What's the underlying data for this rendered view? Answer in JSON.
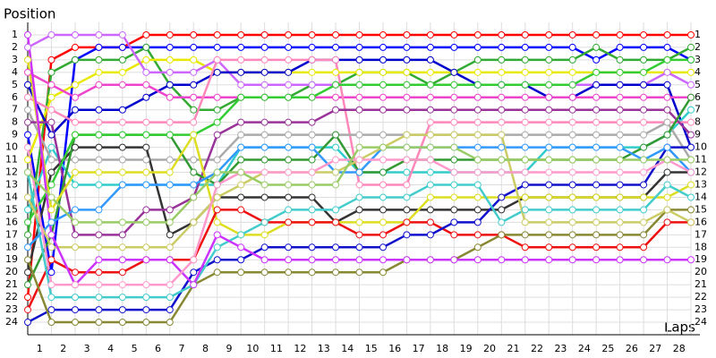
{
  "chart_data": {
    "type": "line",
    "ylabel": "Position",
    "xlabel": "Laps",
    "x": [
      0,
      1,
      2,
      3,
      4,
      5,
      6,
      7,
      8,
      9,
      10,
      11,
      12,
      13,
      14,
      15,
      16,
      17,
      18,
      19,
      20,
      21,
      22,
      23,
      24,
      25,
      26,
      27,
      28
    ],
    "xlim": [
      0,
      28
    ],
    "xticks": [
      1,
      2,
      3,
      4,
      5,
      6,
      7,
      8,
      9,
      10,
      11,
      12,
      13,
      14,
      15,
      16,
      17,
      18,
      19,
      20,
      21,
      22,
      23,
      24,
      25,
      26,
      27,
      28
    ],
    "ylim": [
      25,
      0
    ],
    "yticks": [
      1,
      2,
      3,
      4,
      5,
      6,
      7,
      8,
      9,
      10,
      11,
      12,
      13,
      14,
      15,
      16,
      17,
      18,
      19,
      20,
      21,
      22,
      23,
      24
    ],
    "grid": true,
    "series": [
      {
        "color": "#ff0000",
        "values": [
          22,
          3,
          2,
          2,
          2,
          1,
          1,
          1,
          1,
          1,
          1,
          1,
          1,
          1,
          1,
          1,
          1,
          1,
          1,
          1,
          1,
          1,
          1,
          1,
          1,
          1,
          1,
          1,
          1
        ]
      },
      {
        "color": "#0000ff",
        "values": [
          9,
          20,
          3,
          2,
          2,
          2,
          2,
          2,
          2,
          2,
          2,
          2,
          2,
          2,
          2,
          2,
          2,
          2,
          2,
          2,
          2,
          2,
          2,
          2,
          3,
          2,
          2,
          2,
          3
        ]
      },
      {
        "color": "#33aa33",
        "values": [
          17,
          4,
          3,
          3,
          3,
          2,
          5,
          7,
          7,
          6,
          6,
          6,
          5,
          5,
          4,
          4,
          4,
          5,
          4,
          3,
          3,
          3,
          3,
          3,
          2,
          3,
          3,
          3,
          2
        ]
      },
      {
        "color": "#e8e800",
        "values": [
          11,
          6,
          5,
          4,
          4,
          3,
          3,
          3,
          4,
          4,
          4,
          4,
          4,
          4,
          4,
          4,
          4,
          4,
          4,
          4,
          4,
          4,
          4,
          4,
          4,
          4,
          4,
          4,
          4
        ]
      },
      {
        "color": "#cc66ff",
        "values": [
          2,
          1,
          1,
          1,
          1,
          4,
          4,
          4,
          3,
          5,
          5,
          5,
          5,
          5,
          5,
          5,
          5,
          5,
          5,
          5,
          5,
          5,
          5,
          5,
          5,
          5,
          5,
          4,
          5
        ]
      },
      {
        "color": "#0000cc",
        "values": [
          5,
          9,
          7,
          7,
          7,
          6,
          5,
          5,
          4,
          4,
          4,
          4,
          3,
          3,
          3,
          3,
          3,
          3,
          4,
          5,
          5,
          5,
          6,
          6,
          5,
          5,
          5,
          5,
          10
        ]
      },
      {
        "color": "#ee44cc",
        "values": [
          4,
          5,
          6,
          5,
          5,
          5,
          6,
          6,
          6,
          6,
          6,
          6,
          6,
          6,
          6,
          6,
          6,
          6,
          6,
          6,
          6,
          6,
          6,
          6,
          6,
          6,
          6,
          6,
          6
        ]
      },
      {
        "color": "#33cccc",
        "values": [
          15,
          10,
          13,
          13,
          13,
          13,
          13,
          13,
          13,
          10,
          10,
          10,
          10,
          10,
          12,
          12,
          12,
          12,
          12,
          12,
          12,
          12,
          10,
          10,
          10,
          10,
          10,
          9,
          7
        ]
      },
      {
        "color": "#ff88bb",
        "values": [
          6,
          7,
          8,
          8,
          8,
          8,
          8,
          8,
          3,
          3,
          3,
          3,
          3,
          3,
          13,
          13,
          13,
          8,
          8,
          8,
          8,
          8,
          8,
          8,
          8,
          8,
          8,
          8,
          8
        ]
      },
      {
        "color": "#aaaaaa",
        "values": [
          7,
          11,
          11,
          11,
          11,
          11,
          11,
          11,
          11,
          9,
          9,
          9,
          9,
          9,
          9,
          9,
          9,
          9,
          9,
          9,
          9,
          9,
          9,
          9,
          9,
          9,
          9,
          8,
          11
        ]
      },
      {
        "color": "#333333",
        "values": [
          20,
          12,
          10,
          10,
          10,
          10,
          17,
          16,
          14,
          14,
          14,
          14,
          14,
          16,
          15,
          15,
          15,
          15,
          15,
          15,
          15,
          14,
          14,
          14,
          14,
          14,
          14,
          12,
          12
        ]
      },
      {
        "color": "#993399",
        "values": [
          8,
          8,
          17,
          17,
          17,
          15,
          15,
          14,
          9,
          8,
          8,
          8,
          8,
          7,
          7,
          7,
          7,
          7,
          7,
          7,
          7,
          7,
          7,
          7,
          7,
          7,
          7,
          7,
          9
        ]
      },
      {
        "color": "#339933",
        "values": [
          21,
          17,
          9,
          9,
          9,
          9,
          9,
          12,
          13,
          11,
          11,
          11,
          11,
          9,
          12,
          12,
          11,
          11,
          11,
          11,
          11,
          11,
          11,
          11,
          11,
          11,
          10,
          9,
          6
        ]
      },
      {
        "color": "#33cc33",
        "values": [
          16,
          13,
          9,
          9,
          9,
          9,
          9,
          9,
          8,
          6,
          6,
          6,
          6,
          5,
          5,
          5,
          5,
          5,
          5,
          5,
          5,
          5,
          5,
          5,
          4,
          4,
          4,
          3,
          3
        ]
      },
      {
        "color": "#dddd22",
        "values": [
          3,
          15,
          12,
          12,
          12,
          12,
          12,
          9,
          16,
          17,
          17,
          16,
          16,
          16,
          16,
          16,
          16,
          14,
          14,
          14,
          14,
          14,
          14,
          14,
          14,
          14,
          14,
          14,
          13
        ]
      },
      {
        "color": "#ee1111",
        "values": [
          23,
          19,
          20,
          20,
          20,
          19,
          19,
          19,
          15,
          15,
          16,
          16,
          16,
          16,
          17,
          17,
          16,
          16,
          17,
          17,
          17,
          18,
          18,
          18,
          18,
          18,
          18,
          16,
          16
        ]
      },
      {
        "color": "#1111cc",
        "values": [
          24,
          23,
          23,
          23,
          23,
          23,
          23,
          20,
          19,
          19,
          18,
          18,
          18,
          18,
          18,
          18,
          17,
          17,
          16,
          16,
          14,
          13,
          13,
          13,
          13,
          13,
          13,
          10,
          10
        ]
      },
      {
        "color": "#888833",
        "values": [
          19,
          24,
          24,
          24,
          24,
          24,
          24,
          21,
          20,
          20,
          20,
          20,
          20,
          20,
          20,
          20,
          19,
          19,
          19,
          18,
          17,
          17,
          17,
          17,
          17,
          17,
          17,
          15,
          15
        ]
      },
      {
        "color": "#44cccc",
        "values": [
          12,
          22,
          22,
          22,
          22,
          22,
          22,
          21,
          18,
          17,
          16,
          15,
          15,
          15,
          14,
          14,
          14,
          13,
          13,
          13,
          16,
          15,
          15,
          15,
          15,
          15,
          15,
          13,
          14
        ]
      },
      {
        "color": "#3399ff",
        "values": [
          18,
          16,
          15,
          15,
          13,
          13,
          13,
          13,
          12,
          10,
          10,
          10,
          10,
          12,
          12,
          10,
          10,
          10,
          10,
          10,
          10,
          10,
          10,
          10,
          10,
          10,
          11,
          10,
          12
        ]
      },
      {
        "color": "#cccc66",
        "values": [
          14,
          18,
          18,
          18,
          18,
          18,
          18,
          16,
          14,
          13,
          12,
          12,
          12,
          12,
          11,
          10,
          9,
          9,
          9,
          9,
          9,
          16,
          16,
          16,
          16,
          16,
          16,
          15,
          16
        ]
      },
      {
        "color": "#cc33ff",
        "values": [
          1,
          17,
          21,
          19,
          19,
          19,
          19,
          21,
          17,
          18,
          19,
          19,
          19,
          19,
          19,
          19,
          19,
          19,
          19,
          19,
          19,
          19,
          19,
          19,
          19,
          19,
          19,
          19,
          19
        ]
      },
      {
        "color": "#ff99cc",
        "values": [
          10,
          21,
          21,
          21,
          21,
          21,
          21,
          19,
          13,
          12,
          12,
          12,
          12,
          11,
          11,
          11,
          11,
          11,
          12,
          12,
          12,
          12,
          12,
          12,
          12,
          12,
          12,
          11,
          12
        ]
      },
      {
        "color": "#99cc66",
        "values": [
          12,
          14,
          16,
          16,
          16,
          16,
          16,
          14,
          12,
          12,
          13,
          13,
          13,
          13,
          10,
          10,
          10,
          10,
          10,
          11,
          11,
          11,
          11,
          11,
          11,
          11,
          11,
          11,
          11
        ]
      }
    ]
  }
}
